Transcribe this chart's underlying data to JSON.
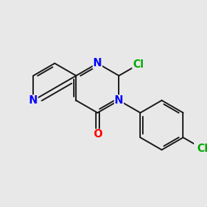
{
  "background_color": "#e8e8e8",
  "bond_color": "#1a1a1a",
  "N_color": "#0000ff",
  "O_color": "#ff0000",
  "Cl_color": "#00aa00",
  "lw": 1.5,
  "fs": 11,
  "xlim": [
    0,
    10
  ],
  "ylim": [
    0,
    10
  ]
}
